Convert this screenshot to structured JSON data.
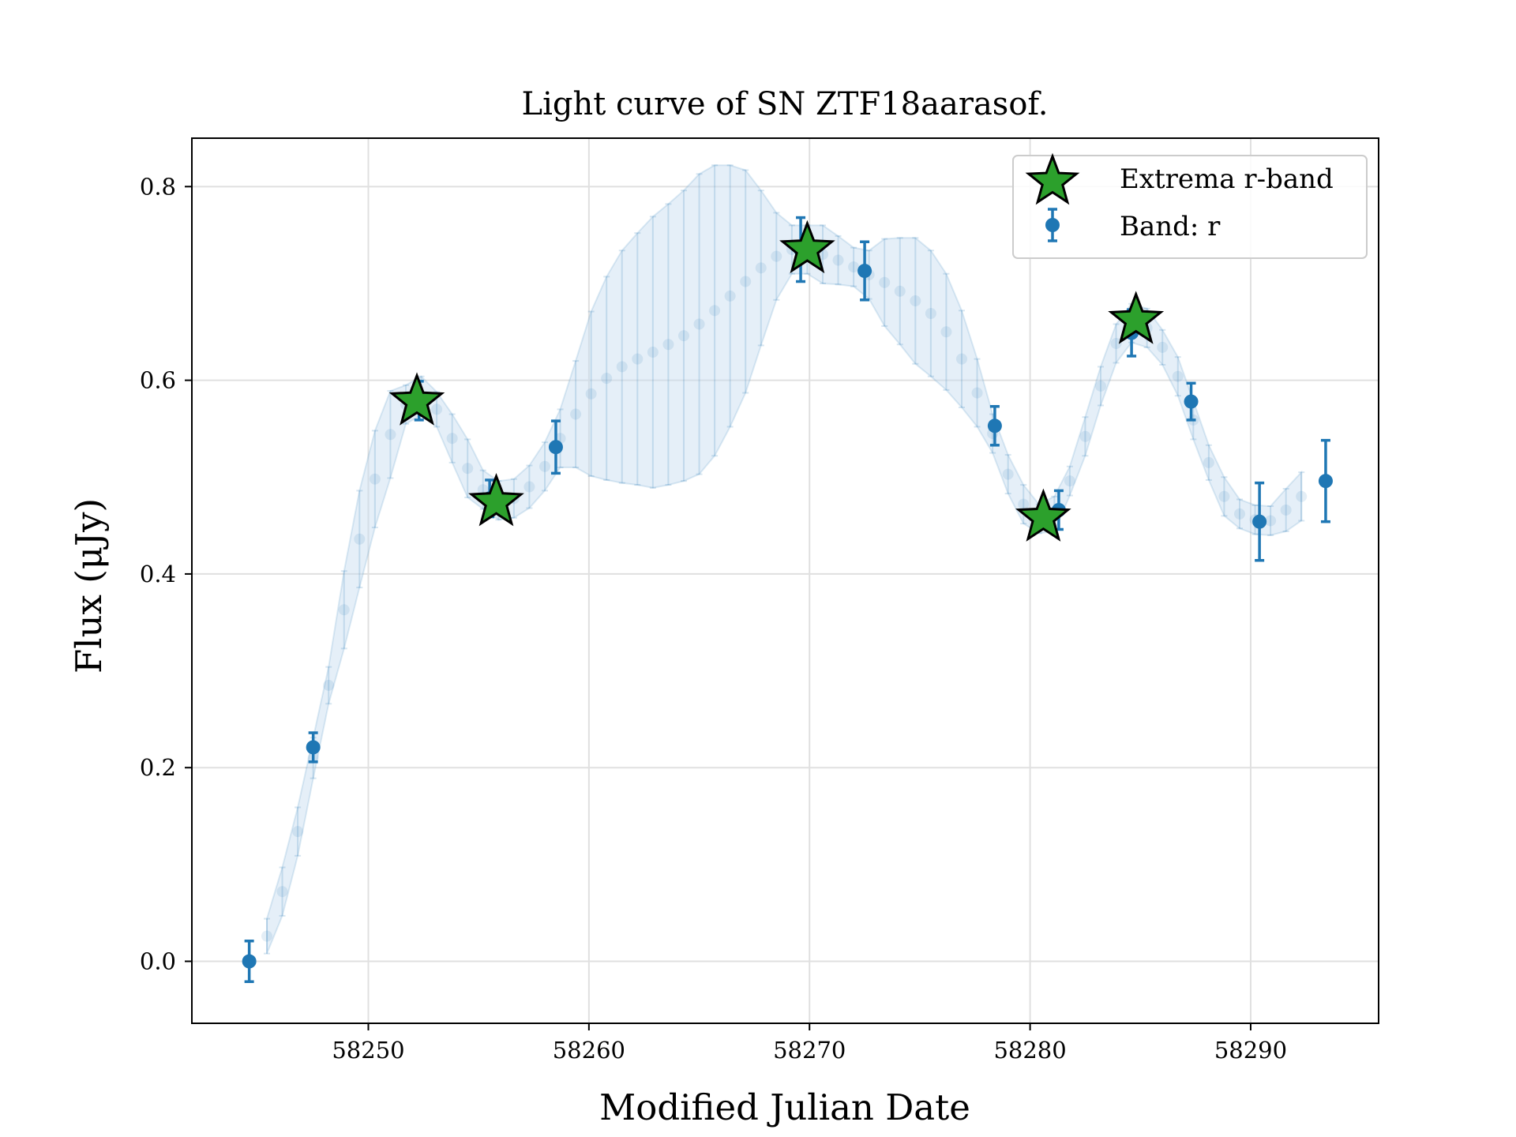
{
  "chart_data": {
    "type": "scatter",
    "title": "Light curve of SN ZTF18aarasof.",
    "xlabel": "Modified Julian Date",
    "ylabel": "Flux (μJy)",
    "xlim": [
      58242.0,
      58295.8
    ],
    "ylim": [
      -0.064,
      0.85
    ],
    "xticks": [
      58250,
      58260,
      58270,
      58280,
      58290
    ],
    "xtick_labels": [
      "58250",
      "58260",
      "58270",
      "58280",
      "58290"
    ],
    "yticks": [
      0.0,
      0.2,
      0.4,
      0.6,
      0.8
    ],
    "ytick_labels": [
      "0.0",
      "0.2",
      "0.4",
      "0.6",
      "0.8"
    ],
    "grid": true,
    "legend_position": "top-right",
    "colors": {
      "band": "#1f77b4",
      "band_fill": "#c6dbef",
      "extrema": "#2ca02c",
      "grid": "#e0e0e0"
    },
    "series": [
      {
        "name": "Band: r",
        "kind": "errorbar",
        "x": [
          58244.6,
          58247.5,
          58252.3,
          58255.5,
          58258.5,
          58269.6,
          58272.5,
          58278.4,
          58281.3,
          58284.6,
          58287.3,
          58290.4,
          58293.4
        ],
        "y": [
          0.0,
          0.221,
          0.579,
          0.478,
          0.531,
          0.735,
          0.713,
          0.553,
          0.466,
          0.649,
          0.578,
          0.454,
          0.496
        ],
        "yerr": [
          0.021,
          0.015,
          0.02,
          0.019,
          0.027,
          0.033,
          0.03,
          0.02,
          0.02,
          0.024,
          0.019,
          0.04,
          0.042
        ]
      },
      {
        "name": "",
        "kind": "gp-prediction",
        "x": [
          58245.4,
          58246.1,
          58246.8,
          58247.5,
          58248.2,
          58248.9,
          58249.6,
          58250.3,
          58251.0,
          58251.7,
          58252.4,
          58253.1,
          58253.8,
          58254.5,
          58255.2,
          58255.9,
          58256.6,
          58257.3,
          58258.0,
          58258.7,
          58259.4,
          58260.1,
          58260.8,
          58261.5,
          58262.2,
          58262.9,
          58263.6,
          58264.3,
          58265.0,
          58265.7,
          58266.4,
          58267.1,
          58267.8,
          58268.5,
          58269.2,
          58269.9,
          58270.6,
          58271.3,
          58272.0,
          58272.7,
          58273.4,
          58274.1,
          58274.8,
          58275.5,
          58276.2,
          58276.9,
          58277.6,
          58278.3,
          58279.0,
          58279.7,
          58280.4,
          58281.1,
          58281.8,
          58282.5,
          58283.2,
          58283.9,
          58284.6,
          58285.3,
          58286.0,
          58286.7,
          58287.4,
          58288.1,
          58288.8,
          58289.5,
          58290.2,
          58290.9,
          58291.6,
          58292.3
        ],
        "y": [
          0.026,
          0.072,
          0.134,
          0.21,
          0.285,
          0.363,
          0.436,
          0.498,
          0.544,
          0.575,
          0.584,
          0.57,
          0.54,
          0.509,
          0.487,
          0.476,
          0.478,
          0.49,
          0.511,
          0.54,
          0.565,
          0.586,
          0.602,
          0.614,
          0.622,
          0.629,
          0.637,
          0.646,
          0.658,
          0.672,
          0.687,
          0.702,
          0.716,
          0.728,
          0.735,
          0.735,
          0.73,
          0.724,
          0.717,
          0.709,
          0.701,
          0.692,
          0.682,
          0.669,
          0.65,
          0.622,
          0.587,
          0.545,
          0.503,
          0.472,
          0.457,
          0.462,
          0.496,
          0.542,
          0.594,
          0.638,
          0.659,
          0.654,
          0.634,
          0.604,
          0.559,
          0.515,
          0.48,
          0.462,
          0.456,
          0.455,
          0.466,
          0.48
        ],
        "yerr": [
          0.018,
          0.025,
          0.025,
          0.021,
          0.019,
          0.04,
          0.05,
          0.05,
          0.045,
          0.02,
          0.02,
          0.018,
          0.025,
          0.03,
          0.02,
          0.02,
          0.02,
          0.022,
          0.025,
          0.03,
          0.055,
          0.085,
          0.105,
          0.12,
          0.13,
          0.14,
          0.145,
          0.15,
          0.155,
          0.15,
          0.135,
          0.115,
          0.08,
          0.045,
          0.025,
          0.025,
          0.03,
          0.025,
          0.02,
          0.025,
          0.045,
          0.055,
          0.065,
          0.065,
          0.06,
          0.05,
          0.035,
          0.02,
          0.02,
          0.02,
          0.015,
          0.018,
          0.015,
          0.02,
          0.02,
          0.02,
          0.02,
          0.02,
          0.018,
          0.02,
          0.02,
          0.018,
          0.02,
          0.015,
          0.015,
          0.015,
          0.022,
          0.025
        ]
      },
      {
        "name": "Extrema r-band",
        "kind": "marker",
        "x": [
          58252.2,
          58255.8,
          58269.9,
          58280.6,
          58284.8
        ],
        "y": [
          0.578,
          0.474,
          0.735,
          0.458,
          0.662
        ]
      }
    ]
  }
}
